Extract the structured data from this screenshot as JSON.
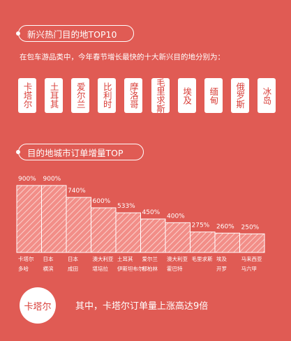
{
  "header": {
    "title": "新兴热门目的地TOP10"
  },
  "intro_text": "在包车游品类中，今年春节增长最快的十大新兴目的地分别为：",
  "destinations": [
    "卡塔尔",
    "土耳其",
    "爱尔兰",
    "比利时",
    "摩洛哥",
    "毛里求斯",
    "埃及",
    "缅甸",
    "俄罗斯",
    "冰岛"
  ],
  "section2": {
    "title": "目的地城市订单增量TOP"
  },
  "chart_data": {
    "type": "bar",
    "categories": [
      [
        "卡塔尔",
        "多哈"
      ],
      [
        "日本",
        "横滨"
      ],
      [
        "日本",
        "成田"
      ],
      [
        "澳大利亚",
        "堪培拉"
      ],
      [
        "土耳其",
        "伊斯坦布尔"
      ],
      [
        "爱尔兰",
        "都柏林"
      ],
      [
        "澳大利亚",
        "霍巴特"
      ],
      [
        "毛里求斯",
        ""
      ],
      [
        "埃及",
        "开罗"
      ],
      [
        "马来西亚",
        "马六甲"
      ]
    ],
    "values": [
      900,
      900,
      740,
      600,
      533,
      450,
      400,
      275,
      260,
      250
    ],
    "value_labels": [
      "900%",
      "900%",
      "740%",
      "600%",
      "533%",
      "450%",
      "400%",
      "275%",
      "260%",
      "250%"
    ],
    "ylim": [
      0,
      900
    ],
    "colors": {
      "bar_fill": "#f28e88",
      "bar_stripe": "#fbd0cc",
      "bar_edge": "#ffffff"
    }
  },
  "note": {
    "circle_label": "卡塔尔",
    "text": "其中，卡塔尔订单量上涨高达9倍"
  },
  "colors": {
    "background": "#e05b54",
    "card_text": "#d9413b"
  }
}
